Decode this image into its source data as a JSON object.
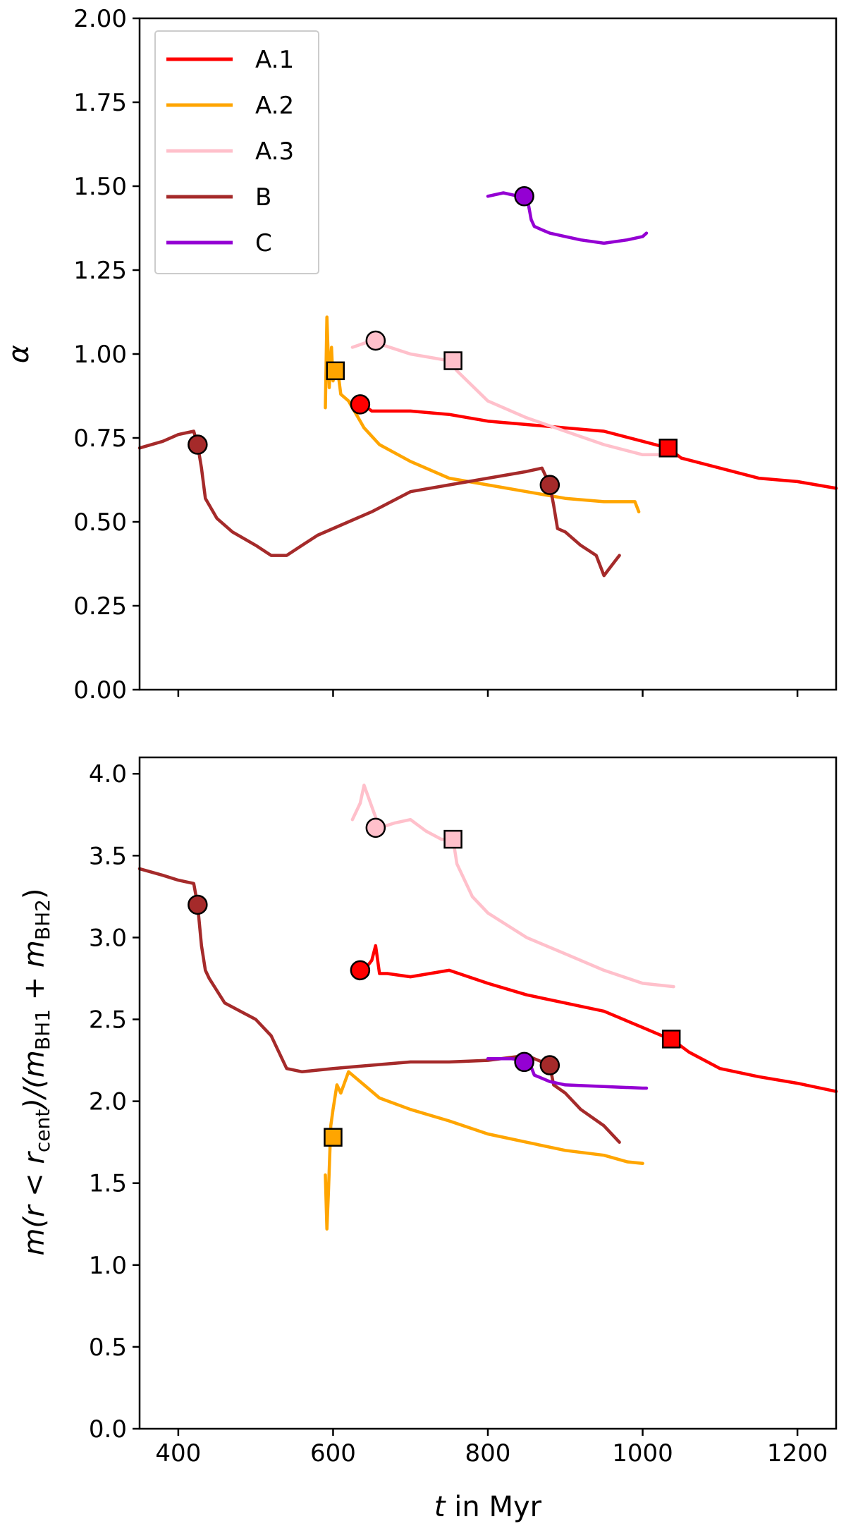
{
  "chart_data": [
    {
      "type": "line",
      "panel": "top",
      "xlim": [
        350,
        1250
      ],
      "ylim": [
        0,
        2
      ],
      "xticks": [
        400,
        600,
        800,
        1000,
        1200
      ],
      "xtick_labels_visible": false,
      "yticks": [
        0,
        0.25,
        0.5,
        0.75,
        1.0,
        1.25,
        1.5,
        1.75,
        2.0
      ],
      "ytick_labels": [
        "0.00",
        "0.25",
        "0.50",
        "0.75",
        "1.00",
        "1.25",
        "1.50",
        "1.75",
        "2.00"
      ],
      "ylabel": "α",
      "xlabel": "",
      "grid": false,
      "legend": {
        "placement": "top-left",
        "entries": [
          "A.1",
          "A.2",
          "A.3",
          "B",
          "C"
        ]
      },
      "series": [
        {
          "name": "A.1",
          "color": "#ff0000",
          "x": [
            633,
            650,
            700,
            750,
            800,
            850,
            900,
            950,
            1000,
            1033,
            1050,
            1100,
            1150,
            1200,
            1250
          ],
          "y": [
            0.86,
            0.83,
            0.83,
            0.82,
            0.8,
            0.79,
            0.78,
            0.77,
            0.74,
            0.72,
            0.69,
            0.66,
            0.63,
            0.62,
            0.6
          ],
          "markers": [
            {
              "shape": "circle",
              "x": 635,
              "y": 0.85
            },
            {
              "shape": "square",
              "x": 1033,
              "y": 0.72
            }
          ]
        },
        {
          "name": "A.2",
          "color": "#ffa500",
          "x": [
            590,
            592,
            595,
            598,
            600,
            605,
            610,
            620,
            640,
            660,
            700,
            750,
            800,
            850,
            900,
            950,
            990,
            995
          ],
          "y": [
            0.84,
            1.11,
            0.9,
            1.02,
            0.92,
            0.97,
            0.88,
            0.86,
            0.78,
            0.73,
            0.68,
            0.63,
            0.61,
            0.59,
            0.57,
            0.56,
            0.56,
            0.53
          ],
          "markers": [
            {
              "shape": "square",
              "x": 603,
              "y": 0.95
            }
          ]
        },
        {
          "name": "A.3",
          "color": "#ffc0cb",
          "x": [
            625,
            650,
            660,
            700,
            750,
            760,
            800,
            850,
            900,
            950,
            1000,
            1040
          ],
          "y": [
            1.02,
            1.04,
            1.03,
            1.0,
            0.98,
            0.95,
            0.86,
            0.81,
            0.77,
            0.73,
            0.7,
            0.7
          ],
          "markers": [
            {
              "shape": "circle",
              "x": 655,
              "y": 1.04
            },
            {
              "shape": "square",
              "x": 755,
              "y": 0.98
            }
          ]
        },
        {
          "name": "B",
          "color": "#a52a2a",
          "x": [
            350,
            380,
            400,
            420,
            425,
            430,
            435,
            440,
            450,
            470,
            500,
            520,
            540,
            560,
            580,
            600,
            650,
            700,
            750,
            800,
            850,
            870,
            880,
            885,
            890,
            900,
            920,
            940,
            950,
            960,
            970
          ],
          "y": [
            0.72,
            0.74,
            0.76,
            0.77,
            0.73,
            0.66,
            0.57,
            0.55,
            0.51,
            0.47,
            0.43,
            0.4,
            0.4,
            0.43,
            0.46,
            0.48,
            0.53,
            0.59,
            0.61,
            0.63,
            0.65,
            0.66,
            0.61,
            0.55,
            0.48,
            0.47,
            0.43,
            0.4,
            0.34,
            0.37,
            0.4
          ],
          "markers": [
            {
              "shape": "circle",
              "x": 425,
              "y": 0.73
            },
            {
              "shape": "circle",
              "x": 880,
              "y": 0.61
            }
          ]
        },
        {
          "name": "C",
          "color": "#9400d3",
          "x": [
            800,
            820,
            840,
            848,
            852,
            856,
            860,
            870,
            880,
            900,
            920,
            950,
            980,
            1000,
            1005
          ],
          "y": [
            1.47,
            1.48,
            1.47,
            1.47,
            1.45,
            1.4,
            1.38,
            1.37,
            1.36,
            1.35,
            1.34,
            1.33,
            1.34,
            1.35,
            1.36
          ],
          "markers": [
            {
              "shape": "circle",
              "x": 847,
              "y": 1.47
            }
          ]
        }
      ]
    },
    {
      "type": "line",
      "panel": "bottom",
      "xlim": [
        350,
        1250
      ],
      "ylim": [
        0,
        4.1
      ],
      "xticks": [
        400,
        600,
        800,
        1000,
        1200
      ],
      "xtick_labels": [
        "400",
        "600",
        "800",
        "1000",
        "1200"
      ],
      "yticks": [
        0,
        0.5,
        1.0,
        1.5,
        2.0,
        2.5,
        3.0,
        3.5,
        4.0
      ],
      "ytick_labels": [
        "0.0",
        "0.5",
        "1.0",
        "1.5",
        "2.0",
        "2.5",
        "3.0",
        "3.5",
        "4.0"
      ],
      "ylabel_parts": [
        "m(r < r",
        "cent",
        ")/(m",
        "BH1",
        " + m",
        "BH2",
        ")"
      ],
      "xlabel_parts": [
        "t",
        " in Myr"
      ],
      "grid": false,
      "series": [
        {
          "name": "A.1",
          "color": "#ff0000",
          "x": [
            633,
            640,
            650,
            655,
            660,
            670,
            700,
            750,
            800,
            850,
            900,
            950,
            1000,
            1040,
            1060,
            1100,
            1150,
            1200,
            1250
          ],
          "y": [
            2.82,
            2.8,
            2.86,
            2.95,
            2.78,
            2.78,
            2.76,
            2.8,
            2.72,
            2.65,
            2.6,
            2.55,
            2.45,
            2.37,
            2.3,
            2.2,
            2.15,
            2.11,
            2.06
          ],
          "markers": [
            {
              "shape": "circle",
              "x": 635,
              "y": 2.8
            },
            {
              "shape": "square",
              "x": 1037,
              "y": 2.38
            }
          ]
        },
        {
          "name": "A.2",
          "color": "#ffa500",
          "x": [
            590,
            592,
            594,
            597,
            600,
            605,
            610,
            620,
            640,
            660,
            700,
            750,
            800,
            850,
            900,
            950,
            980,
            1000
          ],
          "y": [
            1.55,
            1.22,
            1.45,
            1.85,
            1.95,
            2.1,
            2.05,
            2.18,
            2.1,
            2.02,
            1.95,
            1.88,
            1.8,
            1.75,
            1.7,
            1.67,
            1.63,
            1.62
          ],
          "markers": [
            {
              "shape": "square",
              "x": 600,
              "y": 1.78
            }
          ]
        },
        {
          "name": "A.3",
          "color": "#ffc0cb",
          "x": [
            625,
            635,
            640,
            650,
            660,
            680,
            700,
            720,
            740,
            755,
            760,
            780,
            800,
            850,
            900,
            950,
            1000,
            1040
          ],
          "y": [
            3.72,
            3.82,
            3.93,
            3.8,
            3.67,
            3.7,
            3.72,
            3.65,
            3.6,
            3.6,
            3.45,
            3.25,
            3.15,
            3.0,
            2.9,
            2.8,
            2.72,
            2.7
          ],
          "markers": [
            {
              "shape": "circle",
              "x": 655,
              "y": 3.67
            },
            {
              "shape": "square",
              "x": 755,
              "y": 3.6
            }
          ]
        },
        {
          "name": "B",
          "color": "#a52a2a",
          "x": [
            350,
            380,
            400,
            420,
            425,
            430,
            435,
            440,
            460,
            480,
            500,
            520,
            540,
            560,
            600,
            650,
            700,
            750,
            800,
            850,
            880,
            885,
            900,
            920,
            950,
            970
          ],
          "y": [
            3.42,
            3.38,
            3.35,
            3.33,
            3.2,
            2.95,
            2.8,
            2.75,
            2.6,
            2.55,
            2.5,
            2.4,
            2.2,
            2.18,
            2.2,
            2.22,
            2.24,
            2.24,
            2.25,
            2.28,
            2.22,
            2.1,
            2.05,
            1.95,
            1.85,
            1.75
          ],
          "markers": [
            {
              "shape": "circle",
              "x": 425,
              "y": 3.2
            },
            {
              "shape": "circle",
              "x": 880,
              "y": 2.22
            }
          ]
        },
        {
          "name": "C",
          "color": "#9400d3",
          "x": [
            800,
            830,
            848,
            855,
            860,
            880,
            900,
            950,
            1000,
            1005
          ],
          "y": [
            2.26,
            2.26,
            2.25,
            2.22,
            2.16,
            2.12,
            2.1,
            2.09,
            2.08,
            2.08
          ],
          "markers": [
            {
              "shape": "circle",
              "x": 847,
              "y": 2.24
            }
          ]
        }
      ]
    }
  ]
}
